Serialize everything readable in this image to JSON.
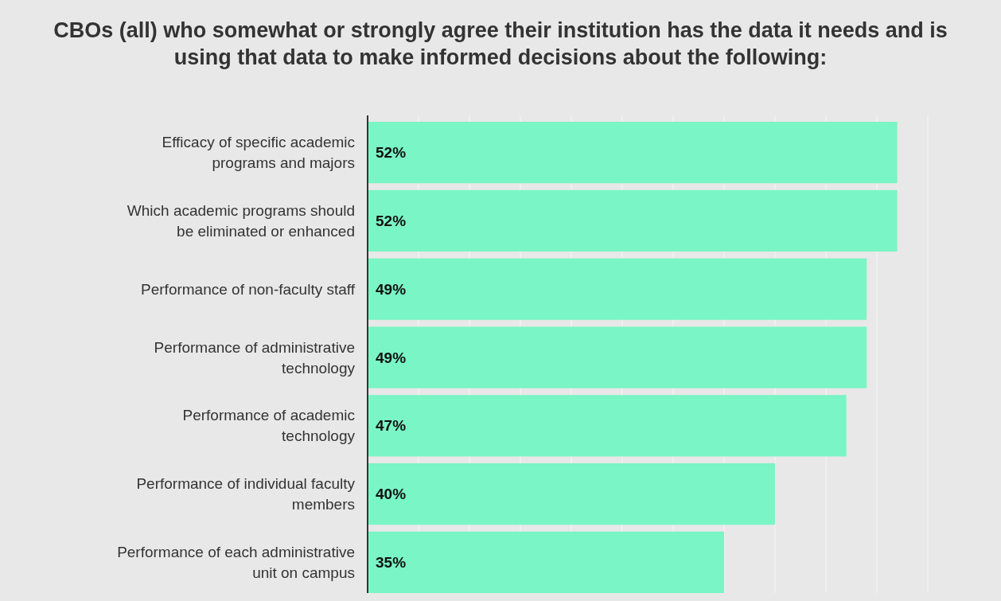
{
  "chart_data": {
    "type": "bar",
    "orientation": "horizontal",
    "title": "CBOs (all) who somewhat or strongly agree their institution has the data it needs and is using that data to make informed decisions about the following:",
    "categories": [
      "Efficacy of specific academic programs and majors",
      "Which academic programs should be eliminated or enhanced",
      "Performance of non-faculty staff",
      "Performance of administrative technology",
      "Performance of academic technology",
      "Performance of individual faculty members",
      "Performance of each administrative unit on campus"
    ],
    "values": [
      52,
      52,
      49,
      49,
      47,
      40,
      35
    ],
    "value_labels": [
      "52%",
      "52%",
      "49%",
      "49%",
      "47%",
      "40%",
      "35%"
    ],
    "color": "#7af5c5",
    "xlim": [
      0,
      55
    ],
    "xticks": [
      {
        "value": 0,
        "label": null
      },
      {
        "value": 5,
        "label": null
      },
      {
        "value": 10,
        "label": null
      },
      {
        "value": 15,
        "label": null
      },
      {
        "value": 20,
        "label": null
      },
      {
        "value": 25,
        "label": null
      },
      {
        "value": 30,
        "label": null
      },
      {
        "value": 35,
        "label": null
      },
      {
        "value": 40,
        "label": null
      },
      {
        "value": 45,
        "label": null
      },
      {
        "value": 50,
        "label": null
      },
      {
        "value": 55,
        "label": null
      }
    ],
    "grid": "x",
    "tick_labels": "y"
  }
}
